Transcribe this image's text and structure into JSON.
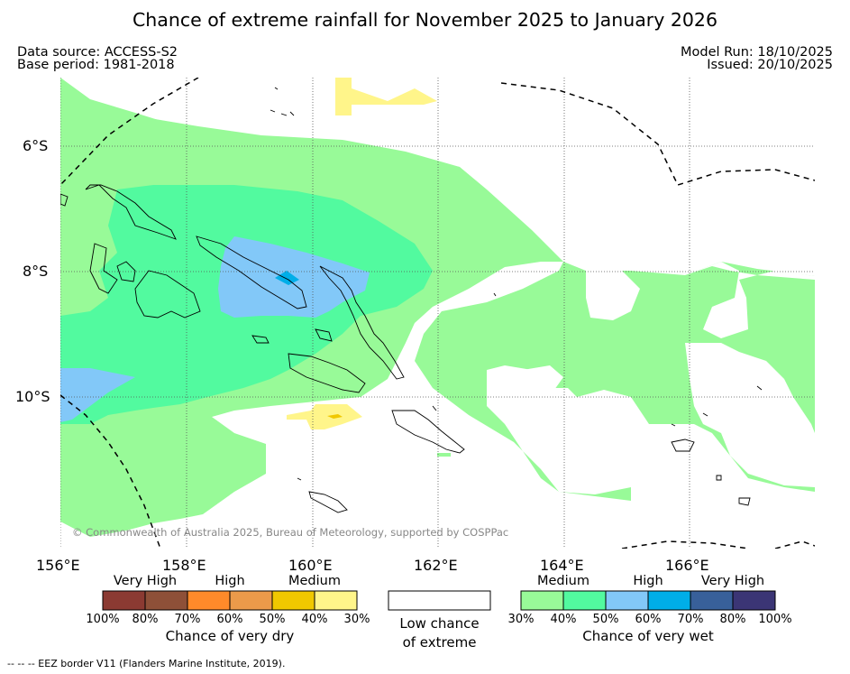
{
  "title": "Chance of extreme rainfall for November 2025 to January 2026",
  "data_source": "Data source: ACCESS-S2",
  "base_period": "Base period: 1981-2018",
  "model_run": "Model Run: 18/10/2025",
  "issued": "Issued: 20/10/2025",
  "lat_labels": [
    "6°S",
    "8°S",
    "10°S"
  ],
  "lon_labels": [
    "156°E",
    "158°E",
    "160°E",
    "162°E",
    "164°E",
    "166°E"
  ],
  "copyright": "© Commonwealth of Australia 2025, Bureau of Meteorology, supported by COSPPac",
  "footnote": "--  --  -- EEZ border V11 (Flanders Marine Institute, 2019).",
  "legend": {
    "dry": {
      "categories": [
        "Very High",
        "High",
        "Medium"
      ],
      "percents": [
        "100%",
        "80%",
        "70%",
        "60%",
        "50%",
        "40%",
        "30%"
      ],
      "colors": [
        "#8b3a32",
        "#8e5038",
        "#ff8a2a",
        "#eb9a4a",
        "#f0c800",
        "#fff58a"
      ],
      "label": "Chance of very dry"
    },
    "low": {
      "label_line1": "Low chance",
      "label_line2": "of extreme",
      "color": "#ffffff"
    },
    "wet": {
      "categories": [
        "Medium",
        "High",
        "Very High"
      ],
      "percents": [
        "30%",
        "40%",
        "50%",
        "60%",
        "70%",
        "80%",
        "100%"
      ],
      "colors": [
        "#98fa98",
        "#52fa9f",
        "#82c8f8",
        "#00aee8",
        "#38609a",
        "#3b3575"
      ],
      "label": "Chance of very wet"
    }
  }
}
